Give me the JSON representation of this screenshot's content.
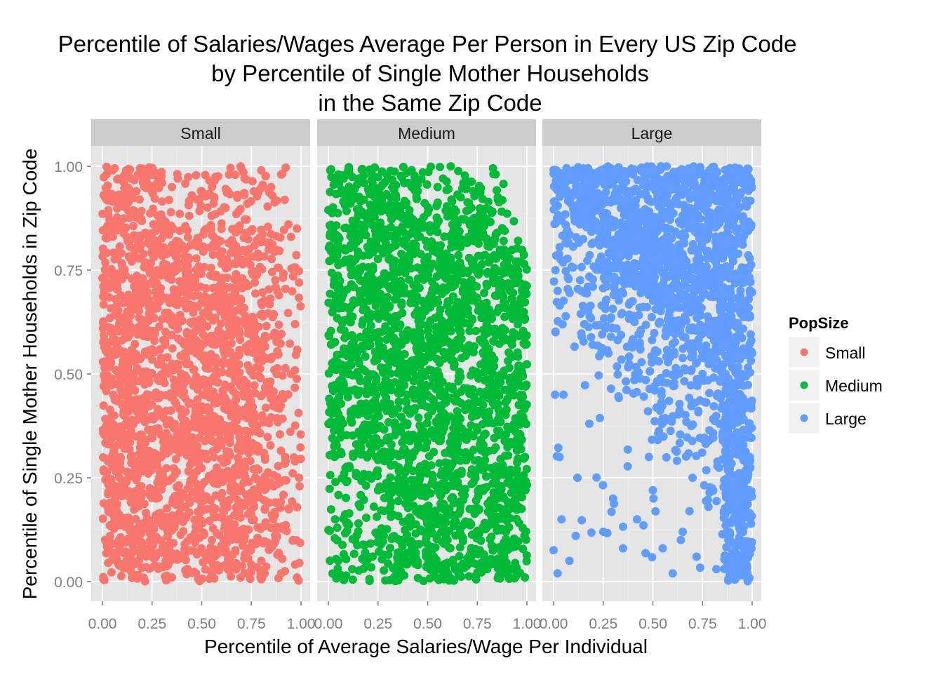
{
  "chart_data": {
    "type": "scatter",
    "title_lines": [
      "Percentile of Salaries/Wages Average Per Person in Every US Zip Code",
      "by Percentile of Single Mother Households",
      "in the Same Zip Code"
    ],
    "xlabel": "Percentile of Average Salaries/Wage Per Individual",
    "ylabel": "Percentile of Single Mother Households in Zip Code",
    "xlim": [
      0,
      1
    ],
    "ylim": [
      0,
      1
    ],
    "x_ticks": [
      "0.00",
      "0.25",
      "0.50",
      "0.75",
      "1.00"
    ],
    "y_ticks": [
      "0.00",
      "0.25",
      "0.50",
      "0.75",
      "1.00"
    ],
    "grid": true,
    "legend": {
      "title": "PopSize",
      "placement": "right",
      "entries": [
        {
          "label": "Small",
          "color": "#F8766D"
        },
        {
          "label": "Medium",
          "color": "#00BA38"
        },
        {
          "label": "Large",
          "color": "#619CFF"
        }
      ]
    },
    "panels": [
      {
        "label": "Small",
        "color": "#F8766D",
        "density_profile": "dense-low-income, thinning above x 0.75"
      },
      {
        "label": "Medium",
        "color": "#00BA38",
        "density_profile": "dense across x, sparse low-y at low x"
      },
      {
        "label": "Large",
        "color": "#619CFF",
        "density_profile": "dense high-y, sparse lower-left, dense x above 0.85"
      }
    ],
    "series": [
      {
        "name": "Small",
        "color": "#F8766D",
        "points": [
          [
            0.02,
            0.98
          ],
          [
            0.05,
            0.99
          ],
          [
            0.08,
            0.97
          ],
          [
            0.12,
            0.99
          ],
          [
            0.18,
            0.98
          ],
          [
            0.22,
            0.97
          ],
          [
            0.3,
            0.96
          ],
          [
            0.35,
            0.95
          ],
          [
            0.38,
            0.97
          ],
          [
            0.45,
            0.93
          ],
          [
            0.5,
            0.94
          ],
          [
            0.56,
            0.91
          ],
          [
            0.62,
            0.9
          ],
          [
            0.68,
            0.93
          ],
          [
            0.73,
            0.91
          ],
          [
            0.8,
            0.99
          ],
          [
            0.85,
            0.95
          ],
          [
            0.9,
            0.98
          ],
          [
            0.95,
            0.83
          ],
          [
            0.98,
            0.85
          ],
          [
            0.1,
            0.75
          ],
          [
            0.2,
            0.6
          ],
          [
            0.3,
            0.5
          ],
          [
            0.4,
            0.4
          ],
          [
            0.5,
            0.3
          ],
          [
            0.6,
            0.2
          ],
          [
            0.7,
            0.1
          ],
          [
            0.8,
            0.05
          ],
          [
            0.9,
            0.02
          ],
          [
            0.95,
            0.5
          ],
          [
            0.97,
            0.62
          ],
          [
            0.99,
            0.72
          ],
          [
            0.92,
            0.3
          ],
          [
            0.88,
            0.7
          ],
          [
            0.83,
            0.48
          ],
          [
            0.76,
            0.63
          ],
          [
            0.86,
            0.15
          ],
          [
            0.96,
            0.1
          ],
          [
            0.99,
            0.25
          ],
          [
            0.15,
            0.02
          ],
          [
            0.35,
            0.01
          ],
          [
            0.55,
            0.02
          ],
          [
            0.75,
            0.03
          ],
          [
            0.98,
            0.01
          ]
        ]
      },
      {
        "name": "Medium",
        "color": "#00BA38",
        "points": [
          [
            0.01,
            0.99
          ],
          [
            0.05,
            0.98
          ],
          [
            0.1,
            0.99
          ],
          [
            0.15,
            0.97
          ],
          [
            0.22,
            0.98
          ],
          [
            0.3,
            0.97
          ],
          [
            0.4,
            0.96
          ],
          [
            0.45,
            0.94
          ],
          [
            0.55,
            0.95
          ],
          [
            0.62,
            0.92
          ],
          [
            0.68,
            0.96
          ],
          [
            0.72,
            0.9
          ],
          [
            0.78,
            0.88
          ],
          [
            0.85,
            0.84
          ],
          [
            0.9,
            0.77
          ],
          [
            0.95,
            0.72
          ],
          [
            0.99,
            0.7
          ],
          [
            0.1,
            0.5
          ],
          [
            0.2,
            0.4
          ],
          [
            0.3,
            0.3
          ],
          [
            0.4,
            0.2
          ],
          [
            0.5,
            0.15
          ],
          [
            0.6,
            0.1
          ],
          [
            0.7,
            0.05
          ],
          [
            0.8,
            0.03
          ],
          [
            0.9,
            0.02
          ],
          [
            0.99,
            0.01
          ],
          [
            0.05,
            0.05
          ],
          [
            0.12,
            0.03
          ],
          [
            0.2,
            0.06
          ],
          [
            0.16,
            0.18
          ],
          [
            0.08,
            0.26
          ],
          [
            0.25,
            0.22
          ],
          [
            0.35,
            0.07
          ],
          [
            0.45,
            0.04
          ],
          [
            0.6,
            0.02
          ],
          [
            0.97,
            0.45
          ],
          [
            0.93,
            0.6
          ],
          [
            0.99,
            0.3
          ]
        ]
      },
      {
        "name": "Large",
        "color": "#619CFF",
        "points": [
          [
            0.01,
            0.99
          ],
          [
            0.1,
            0.99
          ],
          [
            0.2,
            0.98
          ],
          [
            0.3,
            0.99
          ],
          [
            0.4,
            0.98
          ],
          [
            0.5,
            0.99
          ],
          [
            0.6,
            0.98
          ],
          [
            0.7,
            0.99
          ],
          [
            0.8,
            0.98
          ],
          [
            0.86,
            0.97
          ],
          [
            0.92,
            0.93
          ],
          [
            0.96,
            0.85
          ],
          [
            0.99,
            0.7
          ],
          [
            1.0,
            0.55
          ],
          [
            0.02,
            0.7
          ],
          [
            0.05,
            0.45
          ],
          [
            0.03,
            0.3
          ],
          [
            0.04,
            0.15
          ],
          [
            0.02,
            0.02
          ],
          [
            0.08,
            0.05
          ],
          [
            0.12,
            0.25
          ],
          [
            0.18,
            0.38
          ],
          [
            0.25,
            0.12
          ],
          [
            0.3,
            0.2
          ],
          [
            0.35,
            0.08
          ],
          [
            0.42,
            0.15
          ],
          [
            0.48,
            0.3
          ],
          [
            0.5,
            0.22
          ],
          [
            0.55,
            0.08
          ],
          [
            0.6,
            0.02
          ],
          [
            0.65,
            0.12
          ],
          [
            0.7,
            0.25
          ],
          [
            0.72,
            0.06
          ],
          [
            0.78,
            0.18
          ],
          [
            0.82,
            0.03
          ],
          [
            0.88,
            0.1
          ],
          [
            0.92,
            0.01
          ],
          [
            0.97,
            0.02
          ],
          [
            0.99,
            0.15
          ],
          [
            0.95,
            0.3
          ],
          [
            0.9,
            0.45
          ],
          [
            0.85,
            0.35
          ],
          [
            0.75,
            0.5
          ]
        ]
      }
    ]
  }
}
